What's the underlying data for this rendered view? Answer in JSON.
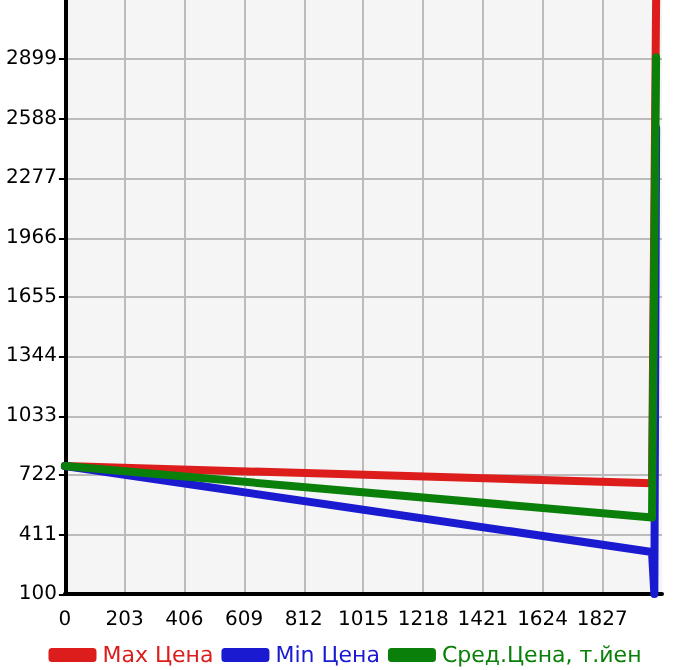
{
  "chart_data": {
    "type": "line",
    "x": [
      0,
      1996,
      2010
    ],
    "xlim": [
      0,
      2030
    ],
    "xticks": [
      0,
      203,
      406,
      609,
      812,
      1015,
      1218,
      1421,
      1624,
      1827
    ],
    "ylim": [
      100,
      3210
    ],
    "yticks": [
      100,
      411,
      722,
      1033,
      1344,
      1655,
      1966,
      2277,
      2588,
      2899
    ],
    "grid": true,
    "legend": "bottom",
    "marker": "none",
    "series": [
      {
        "name": "Max Цена",
        "color": "#dd1c1c",
        "values": [
          770,
          680,
          3210
        ]
      },
      {
        "name": "Min Цена",
        "color": "#1a1ad0",
        "x": [
          0,
          1996,
          2004,
          2010
        ],
        "values": [
          770,
          320,
          100,
          2540
        ]
      },
      {
        "name": "Сред.Цена, т.йен",
        "color": "#0a800a",
        "values": [
          770,
          500,
          2910
        ]
      }
    ]
  }
}
